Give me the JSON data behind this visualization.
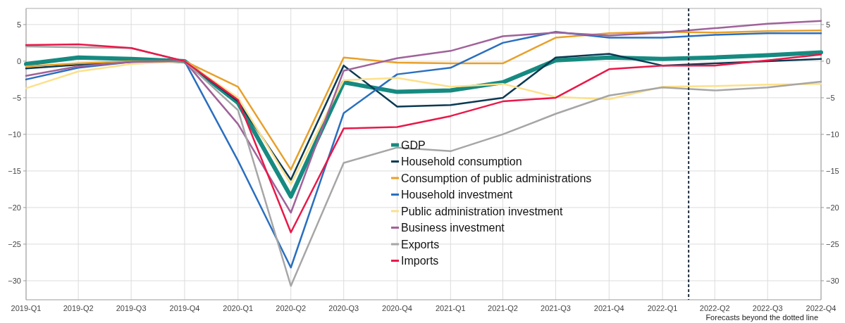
{
  "chart_data": {
    "type": "line",
    "x": [
      "2019-01",
      "2019-04",
      "2019-07",
      "2019-10",
      "2020-01",
      "2020-04",
      "2020-07",
      "2020-10",
      "2021-01",
      "2021-04",
      "2021-07",
      "2021-10",
      "2022-01",
      "2022-04",
      "2022-07",
      "2022-10"
    ],
    "xlim": [
      "2019-01",
      "2022-10"
    ],
    "xticks": [
      {
        "value": "2019-01",
        "label": "2019-Q1"
      },
      {
        "value": "2019-04",
        "label": "2019-Q2"
      },
      {
        "value": "2019-07",
        "label": "2019-Q3"
      },
      {
        "value": "2019-10",
        "label": "2019-Q4"
      },
      {
        "value": "2020-01",
        "label": "2020-Q1"
      },
      {
        "value": "2020-04",
        "label": "2020-Q2"
      },
      {
        "value": "2020-07",
        "label": "2020-Q3"
      },
      {
        "value": "2020-10",
        "label": "2020-Q4"
      },
      {
        "value": "2021-01",
        "label": "2021-Q1"
      },
      {
        "value": "2021-04",
        "label": "2021-Q2"
      },
      {
        "value": "2021-07",
        "label": "2021-Q3"
      },
      {
        "value": "2021-10",
        "label": "2021-Q4"
      },
      {
        "value": "2022-01",
        "label": "2022-Q1"
      },
      {
        "value": "2022-04",
        "label": "2022-Q2"
      },
      {
        "value": "2022-07",
        "label": "2022-Q3"
      },
      {
        "value": "2022-10",
        "label": "2022-Q4"
      }
    ],
    "series": [
      {
        "name": "GDP",
        "color": "#168a80",
        "values": [
          -0.4,
          0.5,
          0.3,
          0,
          -5.7,
          -18.5,
          -2.9,
          -4.2,
          -4.0,
          -2.9,
          0.1,
          0.5,
          0.3,
          0.5,
          0.8,
          1.2
        ]
      },
      {
        "name": "Household consumption",
        "color": "#0b3a52",
        "values": [
          -1.0,
          -0.5,
          -0.1,
          0,
          -5.5,
          -16.2,
          -0.6,
          -6.2,
          -6.0,
          -5.0,
          0.5,
          1.0,
          -0.6,
          -0.3,
          0,
          0.3
        ]
      },
      {
        "name": "Consumption of public administrations",
        "color": "#e8a02a",
        "values": [
          -0.7,
          -0.3,
          0,
          0,
          -3.5,
          -14.8,
          0.5,
          -0.2,
          -0.3,
          -0.3,
          3.2,
          3.8,
          4.0,
          3.9,
          4.1,
          4.2
        ]
      },
      {
        "name": "Household investment",
        "color": "#2a6fbf",
        "values": [
          -2.5,
          -0.9,
          -0.1,
          0,
          -13.6,
          -28.2,
          -7.1,
          -1.8,
          -0.9,
          2.5,
          4.0,
          3.2,
          3.2,
          3.6,
          3.8,
          3.8
        ]
      },
      {
        "name": "Public administration investment",
        "color": "#fde08a",
        "values": [
          -3.7,
          -1.4,
          -0.4,
          0,
          -5.0,
          -16.8,
          -2.6,
          -2.3,
          -3.5,
          -3.1,
          -4.9,
          -5.2,
          -3.5,
          -3.4,
          -3.2,
          -3.1
        ]
      },
      {
        "name": "Business investment",
        "color": "#a0629a",
        "values": [
          -2.0,
          -0.7,
          -0.1,
          0,
          -8.6,
          -20.7,
          -1.3,
          0.4,
          1.4,
          3.4,
          3.9,
          3.5,
          3.9,
          4.5,
          5.1,
          5.5
        ]
      },
      {
        "name": "Exports",
        "color": "#a6a6a6",
        "values": [
          2.0,
          1.9,
          1.8,
          0,
          -6.7,
          -30.7,
          -13.9,
          -11.8,
          -12.3,
          -10.0,
          -7.2,
          -4.7,
          -3.6,
          -4.0,
          -3.6,
          -2.8
        ]
      },
      {
        "name": "Imports",
        "color": "#e8194a",
        "values": [
          2.2,
          2.3,
          1.8,
          0,
          -5.3,
          -23.4,
          -9.2,
          -9.0,
          -7.5,
          -5.5,
          -5.0,
          -1.1,
          -0.6,
          -0.6,
          0.1,
          0.9
        ]
      }
    ],
    "ylim": [
      -32.6,
      7.2
    ],
    "yticks": [
      -30,
      -25,
      -20,
      -15,
      -10,
      -5,
      0,
      5
    ],
    "y2lim": [
      -32.6,
      7.2
    ],
    "y2ticks": [
      -30,
      -25,
      -20,
      -15,
      -10,
      -5,
      0,
      5
    ],
    "grid": true,
    "legend": "bottom",
    "marker": "none",
    "line_style": "solid",
    "ref_lines": [
      {
        "axis": "x",
        "value": "2022-02-15",
        "label": "Forecasts beyond the dotted line",
        "color": "#1f2d3d",
        "line_style": "dashed"
      }
    ]
  }
}
